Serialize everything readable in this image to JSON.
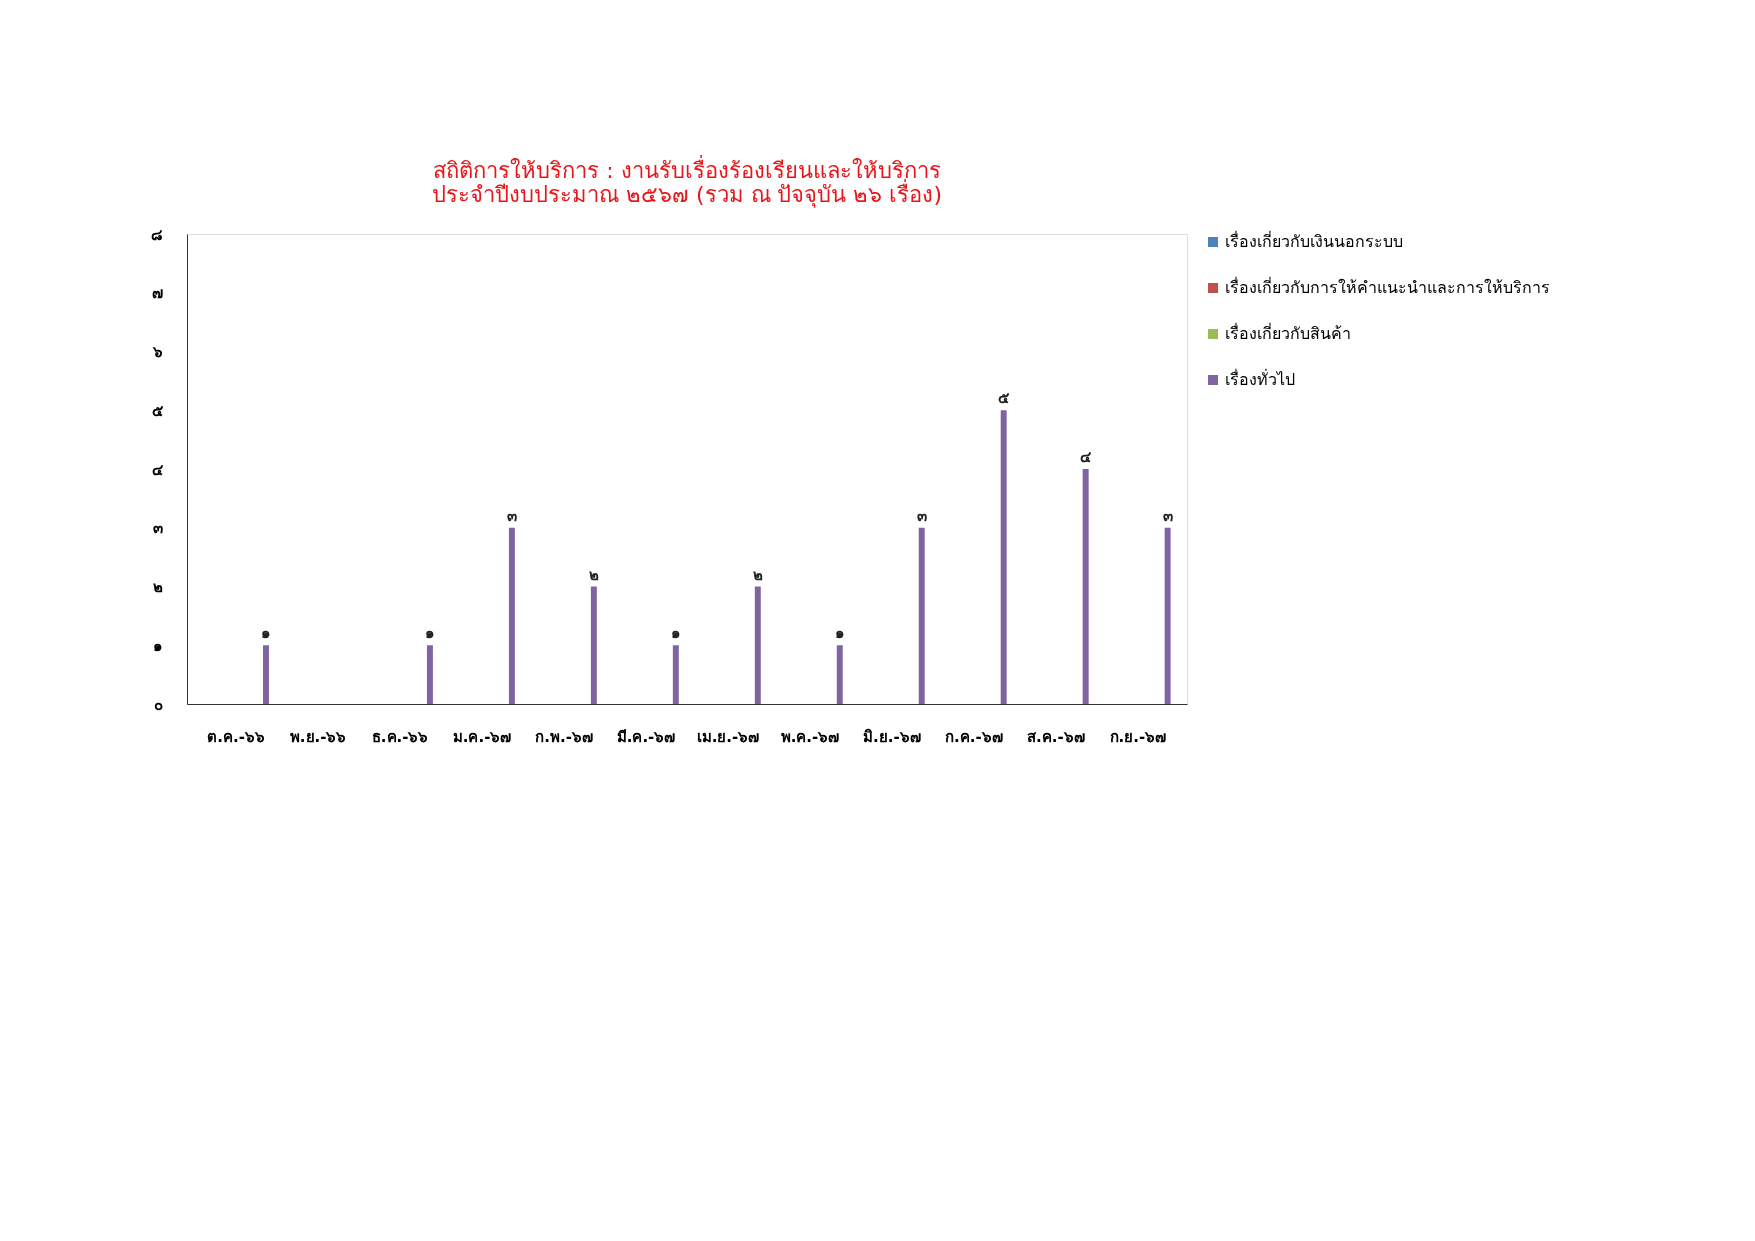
{
  "chart_data": {
    "type": "bar",
    "title": [
      "สถิติการให้บริการ  :  งานรับเรื่องร้องเรียนและให้บริการ",
      "ประจำปีงบประมาณ ๒๕๖๗ (รวม ณ ปัจจุบัน ๒๖ เรื่อง)"
    ],
    "categories": [
      "ต.ค.-๖๖",
      "พ.ย.-๖๖",
      "ธ.ค.-๖๖",
      "ม.ค.-๖๗",
      "ก.พ.-๖๗",
      "มี.ค.-๖๗",
      "เม.ย.-๖๗",
      "พ.ค.-๖๗",
      "มิ.ย.-๖๗",
      "ก.ค.-๖๗",
      "ส.ค.-๖๗",
      "ก.ย.-๖๗"
    ],
    "series": [
      {
        "name": "เรื่องเกี่ยวกับเงินนอกระบบ",
        "color": "#4f81bd",
        "values": [
          null,
          null,
          null,
          null,
          null,
          null,
          null,
          null,
          null,
          null,
          null,
          null
        ]
      },
      {
        "name": "เรื่องเกี่ยวกับการให้คำแนะนำและการให้บริการ",
        "color": "#c0504d",
        "values": [
          null,
          null,
          null,
          null,
          null,
          null,
          null,
          null,
          null,
          null,
          null,
          null
        ]
      },
      {
        "name": "เรื่องเกี่ยวกับสินค้า",
        "color": "#9bbb59",
        "values": [
          null,
          null,
          null,
          null,
          null,
          null,
          null,
          null,
          null,
          null,
          null,
          null
        ]
      },
      {
        "name": "เรื่องทั่วไป",
        "color": "#8064a2",
        "values": [
          1,
          null,
          1,
          3,
          2,
          1,
          2,
          1,
          3,
          5,
          4,
          3
        ],
        "value_labels": [
          "๑",
          null,
          "๑",
          "๓",
          "๒",
          "๑",
          "๒",
          "๑",
          "๓",
          "๕",
          "๔",
          "๓"
        ]
      }
    ],
    "ylim": [
      0,
      8
    ],
    "yticks": [
      {
        "value": 0,
        "label": "๐"
      },
      {
        "value": 1,
        "label": "๑"
      },
      {
        "value": 2,
        "label": "๒"
      },
      {
        "value": 3,
        "label": "๓"
      },
      {
        "value": 4,
        "label": "๔"
      },
      {
        "value": 5,
        "label": "๕"
      },
      {
        "value": 6,
        "label": "๖"
      },
      {
        "value": 7,
        "label": "๗"
      },
      {
        "value": 8,
        "label": "๘"
      }
    ],
    "grid": false,
    "legend": "right"
  }
}
